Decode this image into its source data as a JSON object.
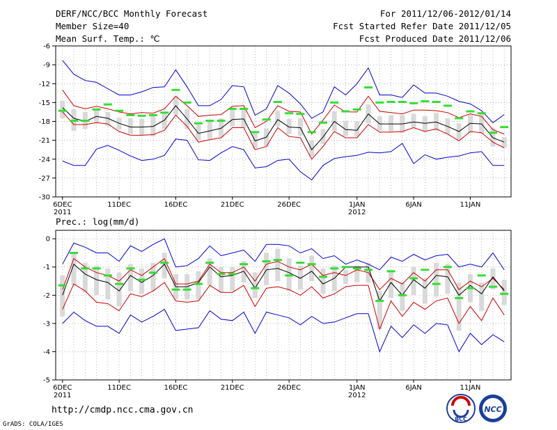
{
  "header": {
    "title": "DERF/NCC/BCC Monthly Forecast",
    "member_size": "Member Size=40",
    "variable": "Mean Surf. Temp.: ℃",
    "period": "For 2011/12/06-2012/01/14",
    "started": "Fcst Started Refer Date 2011/12/05",
    "produced": "Fcst Produced Date 2011/12/06"
  },
  "footer": {
    "url": "http://cmdp.ncc.cma.gov.cn",
    "credit": "GrADS: COLA/IGES",
    "logo_left_text": "BCC",
    "logo_right_text": "NCC"
  },
  "colors": {
    "blue": "#0000cc",
    "red": "#cc0000",
    "black": "#000000",
    "green": "#33dd33",
    "box": "#d9d9d9"
  },
  "chart_data": [
    {
      "type": "line",
      "title": "Mean Surf. Temp.: ℃",
      "ylim": [
        -30,
        -6
      ],
      "yticks": [
        -30,
        -27,
        -24,
        -21,
        -18,
        -15,
        -12,
        -9,
        -6
      ],
      "xlim": [
        -0.6,
        39.6
      ],
      "xticks": [
        {
          "x": 0,
          "label": "6DEC",
          "sub": "2011"
        },
        {
          "x": 5,
          "label": "11DEC",
          "sub": ""
        },
        {
          "x": 10,
          "label": "16DEC",
          "sub": ""
        },
        {
          "x": 15,
          "label": "21DEC",
          "sub": ""
        },
        {
          "x": 20,
          "label": "26DEC",
          "sub": ""
        },
        {
          "x": 26,
          "label": "1JAN",
          "sub": "2012"
        },
        {
          "x": 31,
          "label": "6JAN",
          "sub": ""
        },
        {
          "x": 36,
          "label": "11JAN",
          "sub": ""
        }
      ],
      "series": [
        {
          "name": "max",
          "color": "blue",
          "values": [
            -8.3,
            -10.5,
            -11.5,
            -11.8,
            -12.8,
            -13.8,
            -13.8,
            -13.3,
            -12.6,
            -12.5,
            -9.8,
            -12.5,
            -15.5,
            -15.5,
            -14.5,
            -12.3,
            -12.5,
            -17.0,
            -16.0,
            -12.3,
            -13.5,
            -15.2,
            -17.5,
            -16.5,
            -12.5,
            -13.8,
            -12.0,
            -9.5,
            -13.8,
            -13.8,
            -14.2,
            -12.2,
            -13.5,
            -13.5,
            -14.0,
            -14.8,
            -15.2,
            -16.3,
            -18.2,
            -16.9
          ]
        },
        {
          "name": "upper",
          "color": "red",
          "values": [
            -13.0,
            -15.5,
            -16.0,
            -15.6,
            -16.0,
            -16.5,
            -16.8,
            -16.6,
            -16.7,
            -16.0,
            -14.0,
            -15.5,
            -17.2,
            -17.0,
            -16.9,
            -15.6,
            -15.5,
            -19.0,
            -18.0,
            -15.5,
            -16.4,
            -16.5,
            -20.0,
            -17.8,
            -15.4,
            -16.5,
            -16.5,
            -14.0,
            -16.4,
            -16.6,
            -16.8,
            -16.2,
            -16.2,
            -16.3,
            -16.6,
            -17.4,
            -16.8,
            -17.2,
            -19.3,
            -20.0
          ]
        },
        {
          "name": "mean",
          "color": "black",
          "values": [
            -15.8,
            -17.5,
            -18.0,
            -17.2,
            -17.5,
            -18.3,
            -18.9,
            -18.9,
            -18.8,
            -17.8,
            -15.5,
            -17.6,
            -19.9,
            -19.5,
            -19.1,
            -17.7,
            -17.6,
            -21.1,
            -20.5,
            -17.7,
            -18.9,
            -19.0,
            -22.5,
            -20.5,
            -18.0,
            -19.3,
            -19.4,
            -16.8,
            -18.4,
            -18.4,
            -18.4,
            -18.1,
            -18.3,
            -18.1,
            -18.8,
            -19.6,
            -18.3,
            -18.4,
            -20.6,
            -21.3
          ]
        },
        {
          "name": "lower",
          "color": "red",
          "values": [
            -16.5,
            -18.5,
            -18.5,
            -18.2,
            -18.4,
            -19.6,
            -20.2,
            -20.2,
            -20.1,
            -19.4,
            -17.0,
            -18.8,
            -21.3,
            -20.9,
            -20.6,
            -19.0,
            -19.0,
            -22.5,
            -22.0,
            -19.0,
            -20.4,
            -20.6,
            -24.0,
            -22.0,
            -19.6,
            -20.6,
            -20.6,
            -18.5,
            -19.7,
            -19.7,
            -19.6,
            -19.0,
            -19.6,
            -19.2,
            -20.0,
            -21.1,
            -19.6,
            -19.8,
            -21.3,
            -22.2
          ]
        },
        {
          "name": "min",
          "color": "blue",
          "values": [
            -24.3,
            -25.0,
            -25.0,
            -22.4,
            -21.8,
            -22.6,
            -23.5,
            -24.2,
            -24.0,
            -23.4,
            -20.8,
            -21.0,
            -24.1,
            -24.2,
            -23.0,
            -22.0,
            -22.5,
            -25.4,
            -25.2,
            -24.2,
            -24.0,
            -26.0,
            -27.3,
            -25.0,
            -23.9,
            -23.6,
            -23.4,
            -22.9,
            -23.0,
            -22.8,
            -21.5,
            -24.7,
            -23.3,
            -24.0,
            -23.7,
            -23.5,
            -23.0,
            -22.8,
            -25.0,
            -25.0
          ]
        }
      ],
      "boxes_low": [
        -17.5,
        -19.5,
        -19.2,
        -18.3,
        -18.7,
        -19.3,
        -20.0,
        -20.2,
        -20.4,
        -19.2,
        -17.0,
        -19.2,
        -21.0,
        -20.8,
        -20.5,
        -18.8,
        -19.0,
        -22.3,
        -22.0,
        -18.8,
        -20.0,
        -20.3,
        -23.6,
        -21.6,
        -19.5,
        -20.3,
        -20.4,
        -18.3,
        -19.5,
        -19.6,
        -19.8,
        -19.0,
        -19.6,
        -19.5,
        -20.0,
        -21.0,
        -19.8,
        -20.0,
        -22.0,
        -22.2
      ],
      "boxes_high": [
        -14.7,
        -16.0,
        -16.5,
        -16.2,
        -16.5,
        -17.4,
        -17.5,
        -17.6,
        -17.1,
        -16.5,
        -14.0,
        -16.0,
        -18.5,
        -18.0,
        -17.5,
        -16.2,
        -16.1,
        -19.6,
        -19.1,
        -16.3,
        -17.6,
        -17.5,
        -21.0,
        -19.2,
        -16.4,
        -17.9,
        -18.0,
        -15.3,
        -17.2,
        -17.0,
        -17.0,
        -16.8,
        -17.2,
        -16.6,
        -17.5,
        -18.3,
        -17.0,
        -16.8,
        -19.0,
        -20.5
      ],
      "observed": [
        -16.3,
        -17.9,
        -17.9,
        -16.1,
        -15.3,
        -16.3,
        -17.0,
        -17.1,
        -17.0,
        -16.6,
        -13.0,
        -15.0,
        -18.3,
        -17.9,
        -17.9,
        -16.0,
        -16.0,
        -19.7,
        -17.7,
        -14.9,
        -16.7,
        -16.8,
        -19.7,
        -18.2,
        -15.0,
        -16.4,
        -16.1,
        -12.6,
        -15.0,
        -14.9,
        -14.9,
        -15.1,
        -14.8,
        -14.9,
        -15.5,
        -17.5,
        -16.4,
        -16.7,
        -19.8,
        -18.9
      ],
      "xlabel": "",
      "ylabel": ""
    },
    {
      "type": "line",
      "title": "Prec.: log(mm/d)",
      "ylim": [
        -5,
        0.3
      ],
      "yticks": [
        -5,
        -4,
        -3,
        -2,
        -1,
        0
      ],
      "xlim": [
        -0.6,
        39.6
      ],
      "xticks": [
        {
          "x": 0,
          "label": "6DEC",
          "sub": "2011"
        },
        {
          "x": 5,
          "label": "11DEC",
          "sub": ""
        },
        {
          "x": 10,
          "label": "16DEC",
          "sub": ""
        },
        {
          "x": 15,
          "label": "21DEC",
          "sub": ""
        },
        {
          "x": 20,
          "label": "26DEC",
          "sub": ""
        },
        {
          "x": 26,
          "label": "1JAN",
          "sub": "2012"
        },
        {
          "x": 31,
          "label": "6JAN",
          "sub": ""
        },
        {
          "x": 36,
          "label": "11JAN",
          "sub": ""
        }
      ],
      "series": [
        {
          "name": "max",
          "color": "blue",
          "values": [
            -0.9,
            -0.15,
            -0.3,
            -0.5,
            -0.5,
            -0.8,
            -0.25,
            -0.45,
            -0.2,
            0.0,
            -1.0,
            -0.95,
            -0.7,
            -0.25,
            -0.6,
            -0.5,
            -0.4,
            -0.8,
            -0.2,
            -0.2,
            -0.25,
            -0.5,
            -0.35,
            -0.7,
            -0.6,
            -0.9,
            -0.75,
            -0.9,
            -1.1,
            -0.65,
            -0.8,
            -0.55,
            -0.75,
            -0.6,
            -0.55,
            -1.0,
            -0.9,
            -1.0,
            -0.5,
            -1.1
          ]
        },
        {
          "name": "upper",
          "color": "red",
          "values": [
            -1.8,
            -0.7,
            -1.0,
            -1.2,
            -1.3,
            -1.5,
            -1.1,
            -1.3,
            -1.0,
            -0.7,
            -1.6,
            -1.6,
            -1.5,
            -0.9,
            -1.2,
            -1.2,
            -1.0,
            -1.5,
            -0.9,
            -0.8,
            -1.0,
            -1.1,
            -0.9,
            -1.3,
            -1.2,
            -1.3,
            -1.1,
            -1.2,
            -1.8,
            -1.4,
            -1.6,
            -1.2,
            -1.5,
            -1.1,
            -1.1,
            -1.8,
            -1.5,
            -1.7,
            -1.4,
            -1.8
          ]
        },
        {
          "name": "mean",
          "color": "black",
          "values": [
            -2.0,
            -0.9,
            -1.25,
            -1.45,
            -1.55,
            -1.85,
            -1.3,
            -1.55,
            -1.3,
            -0.9,
            -1.7,
            -1.7,
            -1.55,
            -1.0,
            -1.35,
            -1.3,
            -1.15,
            -1.75,
            -1.1,
            -1.05,
            -1.2,
            -1.4,
            -1.15,
            -1.6,
            -1.4,
            -1.0,
            -1.0,
            -1.0,
            -2.2,
            -1.55,
            -2.0,
            -1.45,
            -1.75,
            -1.3,
            -1.35,
            -2.0,
            -1.65,
            -1.95,
            -1.35,
            -1.85
          ]
        },
        {
          "name": "lower",
          "color": "red",
          "values": [
            -2.5,
            -1.6,
            -1.85,
            -2.25,
            -2.3,
            -2.55,
            -1.95,
            -2.05,
            -1.85,
            -1.55,
            -2.2,
            -2.25,
            -2.2,
            -1.65,
            -1.9,
            -1.9,
            -1.65,
            -2.4,
            -1.75,
            -1.7,
            -1.8,
            -2.0,
            -1.7,
            -2.1,
            -1.95,
            -1.7,
            -1.65,
            -1.65,
            -3.2,
            -2.2,
            -2.75,
            -2.25,
            -2.5,
            -2.2,
            -2.1,
            -3.0,
            -2.4,
            -2.9,
            -2.1,
            -2.7
          ]
        },
        {
          "name": "min",
          "color": "blue",
          "values": [
            -3.0,
            -2.6,
            -2.9,
            -3.1,
            -3.1,
            -3.35,
            -2.7,
            -2.95,
            -2.75,
            -2.5,
            -3.25,
            -3.2,
            -3.15,
            -2.55,
            -2.85,
            -2.9,
            -2.6,
            -3.35,
            -2.6,
            -2.7,
            -2.8,
            -3.05,
            -2.75,
            -3.0,
            -2.95,
            -2.8,
            -2.65,
            -2.65,
            -4.0,
            -3.1,
            -3.5,
            -3.05,
            -3.35,
            -3.0,
            -3.05,
            -4.0,
            -3.35,
            -3.75,
            -3.4,
            -3.65
          ]
        },
        {
          "name": "obs",
          "color": "green",
          "values": []
        }
      ],
      "boxes_low": [
        -2.75,
        -1.65,
        -1.9,
        -2.0,
        -2.15,
        -2.4,
        -1.85,
        -1.95,
        -1.85,
        -1.4,
        -2.15,
        -2.15,
        -2.15,
        -1.65,
        -1.9,
        -1.85,
        -1.55,
        -2.1,
        -1.65,
        -1.5,
        -1.85,
        -1.8,
        -1.5,
        -1.95,
        -1.85,
        -1.6,
        -1.55,
        -1.55,
        -3.2,
        -2.1,
        -2.55,
        -2.0,
        -2.3,
        -2.05,
        -1.95,
        -3.25,
        -2.25,
        -2.55,
        -1.8,
        -2.35
      ],
      "boxes_high": [
        -1.3,
        -0.5,
        -0.85,
        -0.95,
        -1.05,
        -1.2,
        -0.9,
        -1.05,
        -0.85,
        -0.5,
        -1.25,
        -1.25,
        -1.15,
        -0.7,
        -1.0,
        -1.0,
        -0.8,
        -1.2,
        -0.5,
        -0.35,
        -0.7,
        -0.95,
        -0.6,
        -1.05,
        -0.95,
        -1.1,
        -0.95,
        -0.85,
        -1.85,
        -1.15,
        -1.55,
        -1.0,
        -1.4,
        -0.85,
        -0.9,
        -1.55,
        -1.25,
        -1.55,
        -1.05,
        -1.45
      ],
      "observed": [
        -1.65,
        -0.5,
        -1.05,
        -1.05,
        -1.3,
        -1.6,
        -1.05,
        -1.45,
        -1.2,
        -0.85,
        -1.8,
        -1.8,
        -1.6,
        -0.85,
        -1.25,
        -1.25,
        -0.9,
        -1.75,
        -0.8,
        -0.75,
        -1.3,
        -0.85,
        -0.9,
        -1.35,
        -1.05,
        -1.0,
        -1.05,
        -1.1,
        -2.2,
        -1.15,
        -2.0,
        -1.4,
        -1.1,
        -1.6,
        -1.0,
        -2.1,
        -1.75,
        -1.3,
        -1.7,
        -1.95
      ]
    }
  ]
}
